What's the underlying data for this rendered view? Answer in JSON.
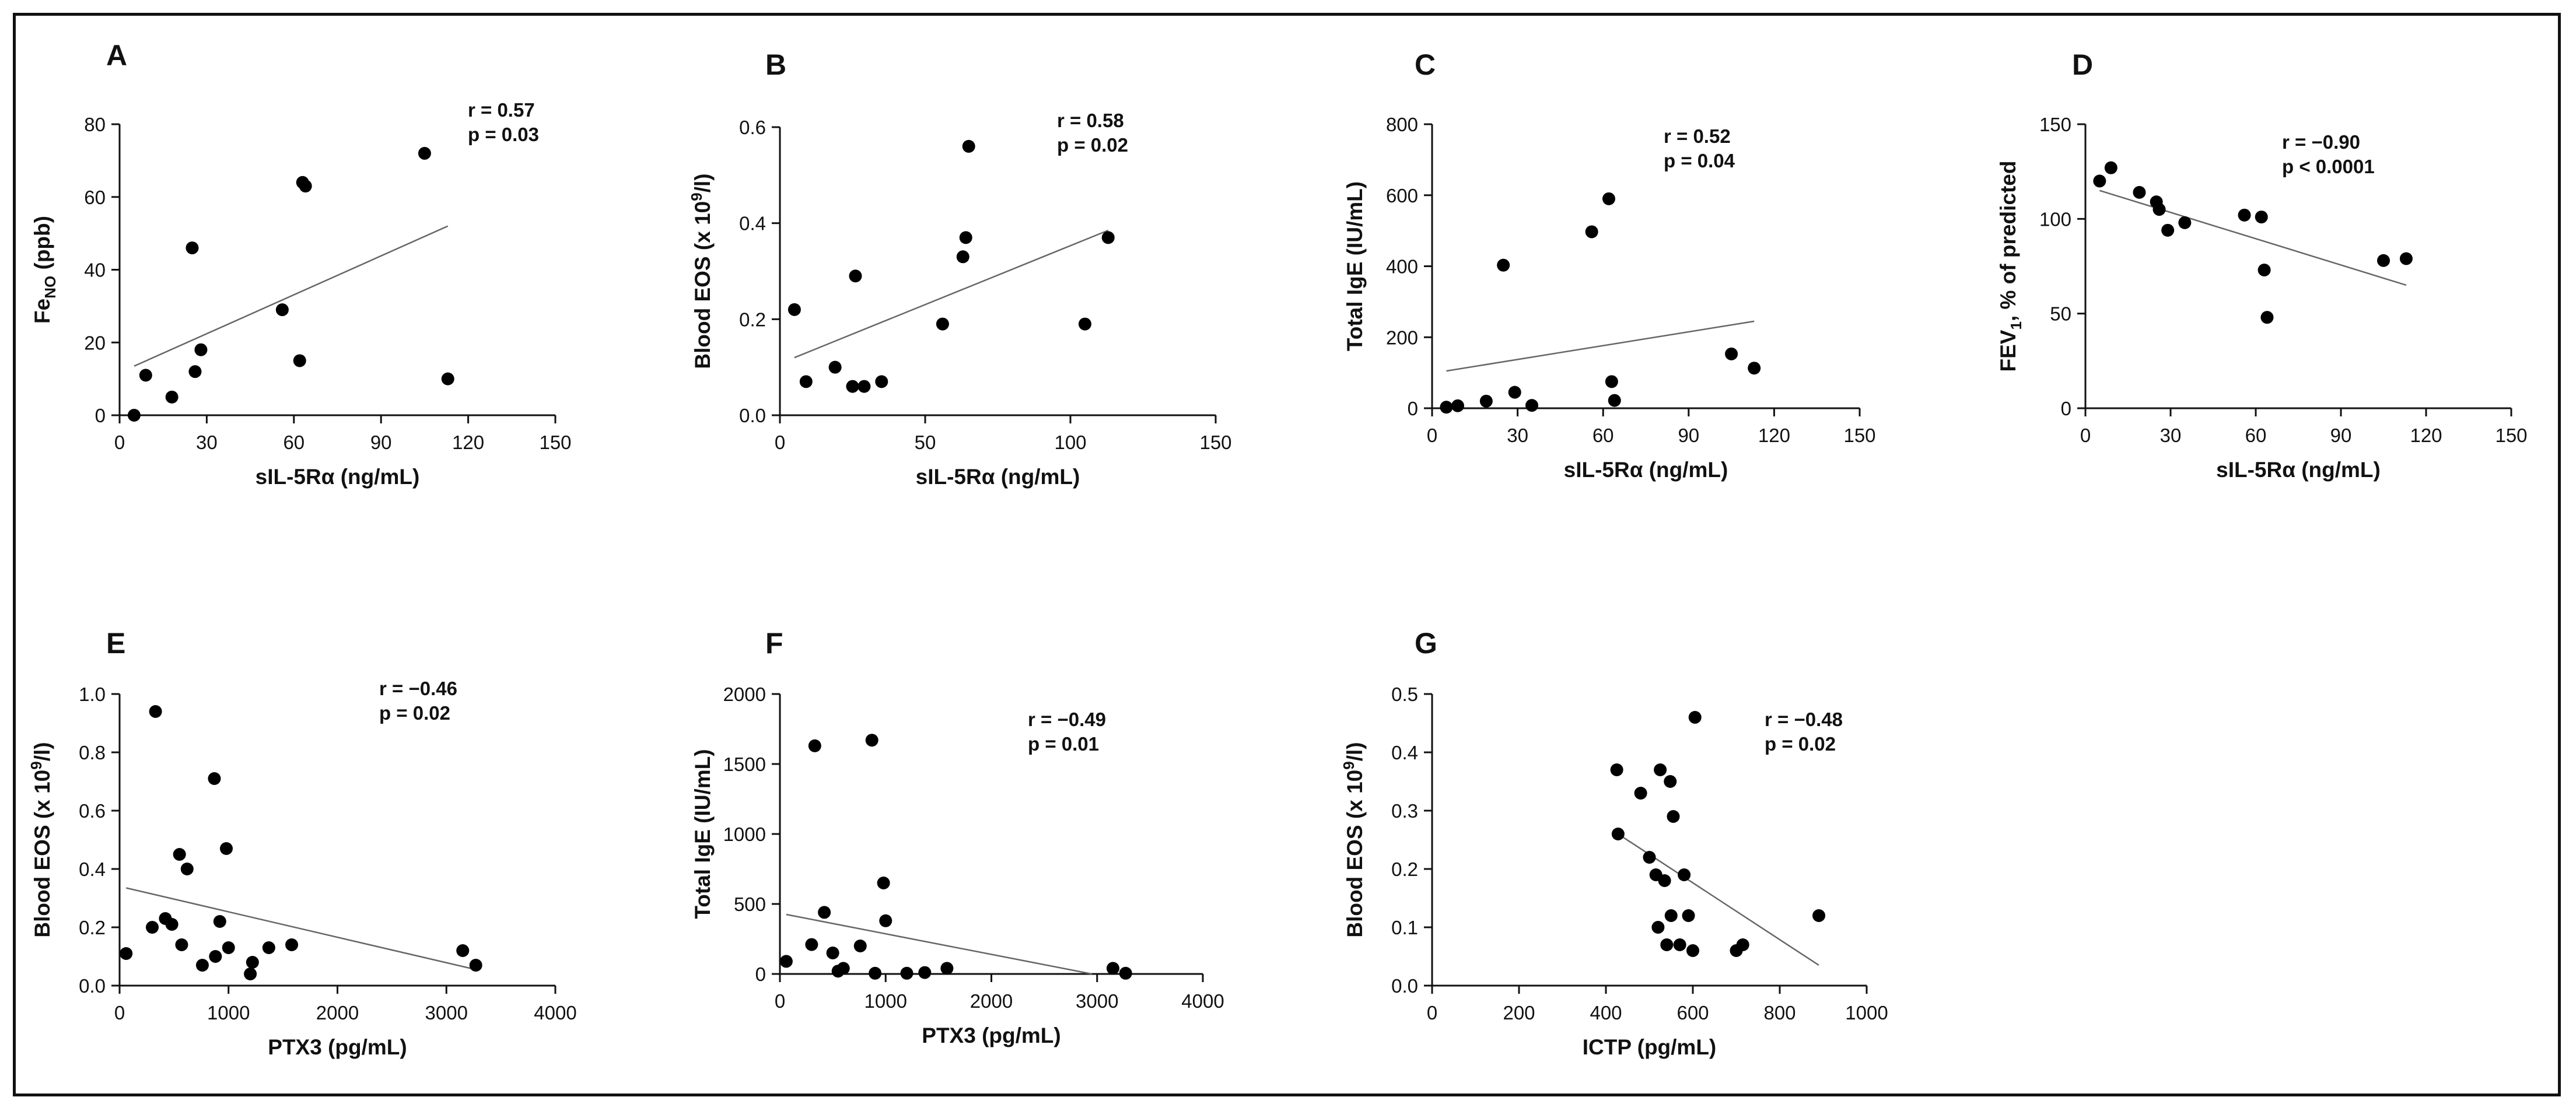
{
  "colors": {
    "axis": "#111111",
    "point": "#000000",
    "fit_line": "#666666",
    "background": "#ffffff"
  },
  "chart_data": [
    {
      "type": "scatter",
      "panel": "A",
      "title": "",
      "xlabel": "sIL-5Rα (ng/mL)",
      "ylabel_main": "Fe",
      "ylabel_sub": "NO",
      "ylabel_sup": "",
      "ylabel_tail": " (ppb)",
      "xlim": [
        0,
        150
      ],
      "ylim": [
        0,
        80
      ],
      "xticks": [
        0,
        30,
        60,
        90,
        120,
        150
      ],
      "yticks": [
        0,
        20,
        40,
        60,
        80
      ],
      "ytick_labels": [
        "0",
        "20",
        "40",
        "60",
        "80"
      ],
      "points": [
        [
          5,
          0
        ],
        [
          9,
          11
        ],
        [
          18,
          5
        ],
        [
          25,
          46
        ],
        [
          26,
          12
        ],
        [
          28,
          18
        ],
        [
          56,
          29
        ],
        [
          62,
          15
        ],
        [
          63,
          64
        ],
        [
          64,
          63
        ],
        [
          105,
          72
        ],
        [
          113,
          10
        ]
      ],
      "fit_line": [
        [
          5,
          13.5
        ],
        [
          113,
          52
        ]
      ],
      "stats": [
        "r = 0.57",
        "p = 0.03"
      ]
    },
    {
      "type": "scatter",
      "panel": "B",
      "title": "",
      "xlabel": "sIL-5Rα (ng/mL)",
      "ylabel_main": "Blood EOS (x 10",
      "ylabel_sub": "",
      "ylabel_sup": "9",
      "ylabel_tail": "/l)",
      "xlim": [
        0,
        150
      ],
      "ylim": [
        0,
        0.6
      ],
      "xticks": [
        0,
        50,
        100,
        150
      ],
      "yticks": [
        0,
        0.2,
        0.4,
        0.6
      ],
      "ytick_labels": [
        "0.0",
        "0.2",
        "0.4",
        "0.6"
      ],
      "points": [
        [
          5,
          0.22
        ],
        [
          9,
          0.07
        ],
        [
          19,
          0.1
        ],
        [
          25,
          0.06
        ],
        [
          26,
          0.29
        ],
        [
          29,
          0.06
        ],
        [
          35,
          0.07
        ],
        [
          56,
          0.19
        ],
        [
          63,
          0.33
        ],
        [
          64,
          0.37
        ],
        [
          65,
          0.56
        ],
        [
          105,
          0.19
        ],
        [
          113,
          0.37
        ]
      ],
      "fit_line": [
        [
          5,
          0.12
        ],
        [
          113,
          0.385
        ]
      ],
      "stats": [
        "r = 0.58",
        "p = 0.02"
      ]
    },
    {
      "type": "scatter",
      "panel": "C",
      "title": "",
      "xlabel": "sIL-5Rα (ng/mL)",
      "ylabel_main": "Total IgE (IU/mL)",
      "ylabel_sub": "",
      "ylabel_sup": "",
      "ylabel_tail": "",
      "xlim": [
        0,
        150
      ],
      "ylim": [
        0,
        800
      ],
      "xticks": [
        0,
        30,
        60,
        90,
        120,
        150
      ],
      "yticks": [
        0,
        200,
        400,
        600,
        800
      ],
      "ytick_labels": [
        "0",
        "200",
        "400",
        "600",
        "800"
      ],
      "points": [
        [
          5,
          3
        ],
        [
          9,
          7
        ],
        [
          19,
          20
        ],
        [
          25,
          403
        ],
        [
          29,
          45
        ],
        [
          35,
          8
        ],
        [
          56,
          497
        ],
        [
          62,
          590
        ],
        [
          63,
          75
        ],
        [
          64,
          22
        ],
        [
          105,
          153
        ],
        [
          113,
          113
        ]
      ],
      "fit_line": [
        [
          5,
          105
        ],
        [
          113,
          245
        ]
      ],
      "stats": [
        "r = 0.52",
        "p = 0.04"
      ]
    },
    {
      "type": "scatter",
      "panel": "D",
      "title": "",
      "xlabel": "sIL-5Rα (ng/mL)",
      "ylabel_main": "FEV",
      "ylabel_sub": "1",
      "ylabel_sup": "",
      "ylabel_tail": ", % of predicted",
      "xlim": [
        0,
        150
      ],
      "ylim": [
        0,
        150
      ],
      "xticks": [
        0,
        30,
        60,
        90,
        120,
        150
      ],
      "yticks": [
        0,
        50,
        100,
        150
      ],
      "ytick_labels": [
        "0",
        "50",
        "100",
        "150"
      ],
      "points": [
        [
          5,
          120
        ],
        [
          9,
          127
        ],
        [
          19,
          114
        ],
        [
          25,
          109
        ],
        [
          26,
          105
        ],
        [
          29,
          94
        ],
        [
          35,
          98
        ],
        [
          56,
          102
        ],
        [
          62,
          101
        ],
        [
          63,
          73
        ],
        [
          64,
          48
        ],
        [
          105,
          78
        ],
        [
          113,
          79
        ]
      ],
      "fit_line": [
        [
          5,
          115
        ],
        [
          113,
          65
        ]
      ],
      "stats": [
        "r = −0.90",
        "p < 0.0001"
      ]
    },
    {
      "type": "scatter",
      "panel": "E",
      "title": "",
      "xlabel": "PTX3 (pg/mL)",
      "ylabel_main": "Blood EOS (x 10",
      "ylabel_sub": "",
      "ylabel_sup": "9",
      "ylabel_tail": "/l)",
      "xlim": [
        0,
        4000
      ],
      "ylim": [
        0,
        1.0
      ],
      "xticks": [
        0,
        1000,
        2000,
        3000,
        4000
      ],
      "yticks": [
        0,
        0.2,
        0.4,
        0.6,
        0.8,
        1.0
      ],
      "ytick_labels": [
        "0.0",
        "0.2",
        "0.4",
        "0.6",
        "0.8",
        "1.0"
      ],
      "points": [
        [
          60,
          0.11
        ],
        [
          300,
          0.2
        ],
        [
          330,
          0.94
        ],
        [
          420,
          0.23
        ],
        [
          480,
          0.21
        ],
        [
          550,
          0.45
        ],
        [
          570,
          0.14
        ],
        [
          620,
          0.4
        ],
        [
          760,
          0.07
        ],
        [
          870,
          0.71
        ],
        [
          880,
          0.1
        ],
        [
          920,
          0.22
        ],
        [
          980,
          0.47
        ],
        [
          1000,
          0.13
        ],
        [
          1200,
          0.04
        ],
        [
          1220,
          0.08
        ],
        [
          1370,
          0.13
        ],
        [
          1580,
          0.14
        ],
        [
          3150,
          0.12
        ],
        [
          3270,
          0.07
        ]
      ],
      "fit_line": [
        [
          60,
          0.335
        ],
        [
          3270,
          0.055
        ]
      ],
      "stats": [
        "r = −0.46",
        "p = 0.02"
      ]
    },
    {
      "type": "scatter",
      "panel": "F",
      "title": "",
      "xlabel": "PTX3 (pg/mL)",
      "ylabel_main": "Total IgE (IU/mL)",
      "ylabel_sub": "",
      "ylabel_sup": "",
      "ylabel_tail": "",
      "xlim": [
        0,
        4000
      ],
      "ylim": [
        0,
        2000
      ],
      "xticks": [
        0,
        1000,
        2000,
        3000,
        4000
      ],
      "yticks": [
        0,
        500,
        1000,
        1500,
        2000
      ],
      "ytick_labels": [
        "0",
        "500",
        "1000",
        "1500",
        "2000"
      ],
      "points": [
        [
          60,
          90
        ],
        [
          300,
          210
        ],
        [
          330,
          1630
        ],
        [
          420,
          440
        ],
        [
          500,
          150
        ],
        [
          550,
          20
        ],
        [
          600,
          40
        ],
        [
          760,
          200
        ],
        [
          870,
          1670
        ],
        [
          900,
          5
        ],
        [
          980,
          650
        ],
        [
          1000,
          380
        ],
        [
          1200,
          5
        ],
        [
          1370,
          10
        ],
        [
          1580,
          40
        ],
        [
          3150,
          40
        ],
        [
          3270,
          5
        ]
      ],
      "fit_line": [
        [
          60,
          425
        ],
        [
          2950,
          0
        ]
      ],
      "stats": [
        "r = −0.49",
        "p = 0.01"
      ]
    },
    {
      "type": "scatter",
      "panel": "G",
      "title": "",
      "xlabel": "ICTP (pg/mL)",
      "ylabel_main": "Blood EOS (x 10",
      "ylabel_sub": "",
      "ylabel_sup": "9",
      "ylabel_tail": "/l)",
      "xlim": [
        0,
        1000
      ],
      "ylim": [
        0,
        0.5
      ],
      "xticks": [
        0,
        200,
        400,
        600,
        800,
        1000
      ],
      "yticks": [
        0,
        0.1,
        0.2,
        0.3,
        0.4,
        0.5
      ],
      "ytick_labels": [
        "0.0",
        "0.1",
        "0.2",
        "0.3",
        "0.4",
        "0.5"
      ],
      "points": [
        [
          425,
          0.37
        ],
        [
          428,
          0.26
        ],
        [
          480,
          0.33
        ],
        [
          500,
          0.22
        ],
        [
          515,
          0.19
        ],
        [
          520,
          0.1
        ],
        [
          525,
          0.37
        ],
        [
          535,
          0.18
        ],
        [
          540,
          0.07
        ],
        [
          548,
          0.35
        ],
        [
          550,
          0.12
        ],
        [
          555,
          0.29
        ],
        [
          570,
          0.07
        ],
        [
          580,
          0.19
        ],
        [
          590,
          0.12
        ],
        [
          600,
          0.06
        ],
        [
          605,
          0.46
        ],
        [
          700,
          0.06
        ],
        [
          715,
          0.07
        ],
        [
          890,
          0.12
        ]
      ],
      "fit_line": [
        [
          428,
          0.26
        ],
        [
          890,
          0.035
        ]
      ],
      "stats": [
        "r = −0.48",
        "p = 0.02"
      ]
    }
  ]
}
